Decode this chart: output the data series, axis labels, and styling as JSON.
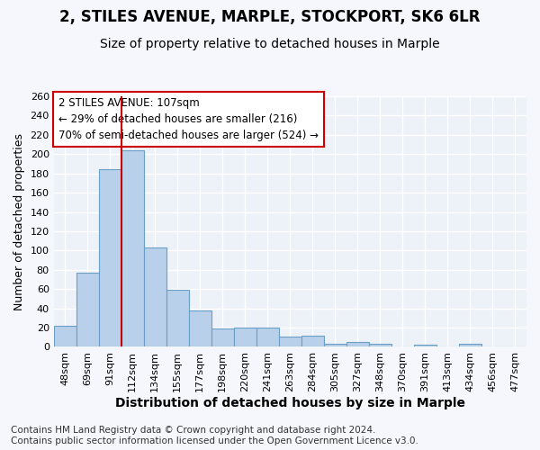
{
  "title1": "2, STILES AVENUE, MARPLE, STOCKPORT, SK6 6LR",
  "title2": "Size of property relative to detached houses in Marple",
  "xlabel": "Distribution of detached houses by size in Marple",
  "ylabel": "Number of detached properties",
  "categories": [
    "48sqm",
    "69sqm",
    "91sqm",
    "112sqm",
    "134sqm",
    "155sqm",
    "177sqm",
    "198sqm",
    "220sqm",
    "241sqm",
    "263sqm",
    "284sqm",
    "305sqm",
    "327sqm",
    "348sqm",
    "370sqm",
    "391sqm",
    "413sqm",
    "434sqm",
    "456sqm",
    "477sqm"
  ],
  "values": [
    22,
    77,
    184,
    204,
    103,
    59,
    38,
    19,
    20,
    20,
    11,
    12,
    3,
    5,
    3,
    0,
    2,
    0,
    3,
    0,
    0
  ],
  "bar_color": "#b8d0ea",
  "bar_edge_color": "#6a9fc8",
  "vline_x": 2.5,
  "vline_color": "#cc0000",
  "annotation_line1": "2 STILES AVENUE: 107sqm",
  "annotation_line2": "← 29% of detached houses are smaller (216)",
  "annotation_line3": "70% of semi-detached houses are larger (524) →",
  "annotation_box_facecolor": "#ffffff",
  "annotation_box_edgecolor": "#cc0000",
  "ylim": [
    0,
    260
  ],
  "yticks": [
    0,
    20,
    40,
    60,
    80,
    100,
    120,
    140,
    160,
    180,
    200,
    220,
    240,
    260
  ],
  "footer_line1": "Contains HM Land Registry data © Crown copyright and database right 2024.",
  "footer_line2": "Contains public sector information licensed under the Open Government Licence v3.0.",
  "bg_color": "#f5f7fc",
  "plot_bg_color": "#edf1f8",
  "grid_color": "#ffffff",
  "title1_fontsize": 12,
  "title2_fontsize": 10,
  "xlabel_fontsize": 10,
  "ylabel_fontsize": 9,
  "tick_fontsize": 8,
  "ann_fontsize": 8.5,
  "footer_fontsize": 7.5
}
